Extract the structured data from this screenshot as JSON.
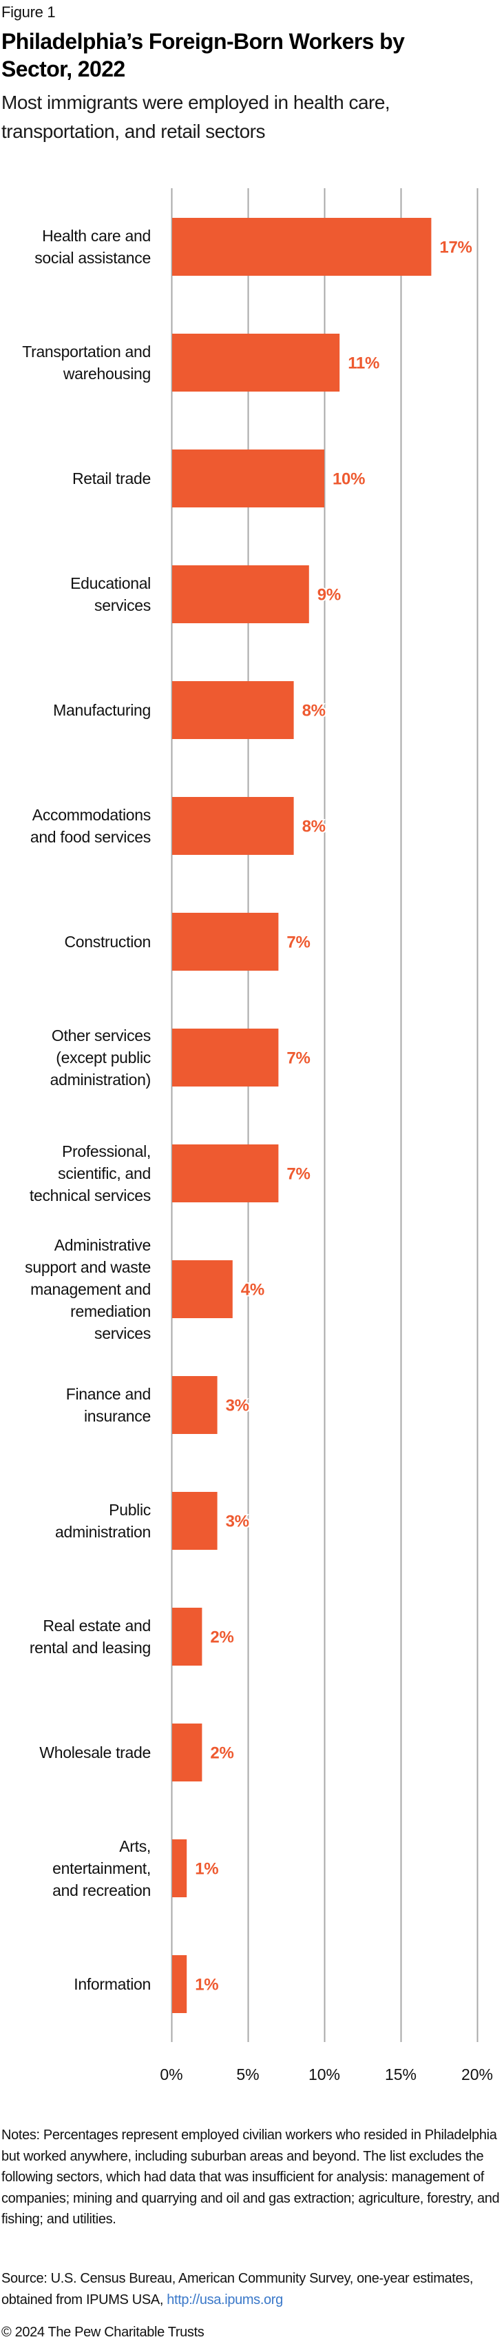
{
  "figure_label": "Figure 1",
  "title": "Philadelphia’s Foreign-Born Workers by Sector, 2022",
  "title_lines": [
    "Philadelphia’s Foreign-Born Workers by",
    "Sector, 2022"
  ],
  "subtitle": "Most immigrants were employed in health care, transportation, and retail sectors",
  "subtitle_lines": [
    "Most immigrants were employed in health care,",
    "transportation, and retail sectors"
  ],
  "colors": {
    "bar": "#EE5A30",
    "value_label": "#EE5A30",
    "gridline": "#A8A8A8",
    "text": "#111111",
    "link": "#3A78C9"
  },
  "chart_data": {
    "type": "bar",
    "orientation": "horizontal",
    "title": "Philadelphia’s Foreign-Born Workers by Sector, 2022",
    "subtitle": "Most immigrants were employed in health care, transportation, and retail sectors",
    "xlabel": "",
    "ylabel": "",
    "xlim": [
      0,
      20
    ],
    "x_ticks": [
      0,
      5,
      10,
      15,
      20
    ],
    "x_tick_labels": [
      "0%",
      "5%",
      "10%",
      "15%",
      "20%"
    ],
    "grid": "vertical",
    "legend": "none",
    "categories": [
      "Health care and social assistance",
      "Transportation and warehousing",
      "Retail trade",
      "Educational services",
      "Manufacturing",
      "Accommodations and food services",
      "Construction",
      "Other services (except public administration)",
      "Professional, scientific, and technical services",
      "Administrative support and waste management and remediation services",
      "Finance and insurance",
      "Public administration",
      "Real estate and rental and leasing",
      "Wholesale trade",
      "Arts, entertainment, and recreation",
      "Information"
    ],
    "category_label_lines": [
      [
        "Health care and",
        "social assistance"
      ],
      [
        "Transportation and",
        "warehousing"
      ],
      [
        "Retail trade"
      ],
      [
        "Educational",
        "services"
      ],
      [
        "Manufacturing"
      ],
      [
        "Accommodations",
        "and food services"
      ],
      [
        "Construction"
      ],
      [
        "Other services",
        "(except public",
        "administration)"
      ],
      [
        "Professional,",
        "scientific, and",
        "technical services"
      ],
      [
        "Administrative",
        "support and waste",
        "management and",
        "remediation",
        "services"
      ],
      [
        "Finance and",
        "insurance"
      ],
      [
        "Public",
        "administration"
      ],
      [
        "Real estate and",
        "rental and leasing"
      ],
      [
        "Wholesale trade"
      ],
      [
        "Arts,",
        "entertainment,",
        "and recreation"
      ],
      [
        "Information"
      ]
    ],
    "values": [
      17,
      11,
      10,
      9,
      8,
      8,
      7,
      7,
      7,
      4,
      3,
      3,
      2,
      2,
      1,
      1
    ],
    "value_labels": [
      "17%",
      "11%",
      "10%",
      "9%",
      "8%",
      "8%",
      "7%",
      "7%",
      "7%",
      "4%",
      "3%",
      "3%",
      "2%",
      "2%",
      "1%",
      "1%"
    ],
    "unit": "%"
  },
  "notes": "Notes: Percentages represent employed civilian workers who resided in Philadelphia but worked anywhere, including suburban areas and beyond. The list excludes the following sectors, which had data that was insufficient for analysis: management of companies; mining and quarrying and oil and gas extraction; agriculture, forestry, and fishing; and utilities.",
  "source": {
    "text": "Source: U.S. Census Bureau, American Community Survey, one-year estimates, obtained from IPUMS USA, ",
    "link_text": "http://usa.ipums.org"
  },
  "copyright": "© 2024 The Pew Charitable Trusts"
}
